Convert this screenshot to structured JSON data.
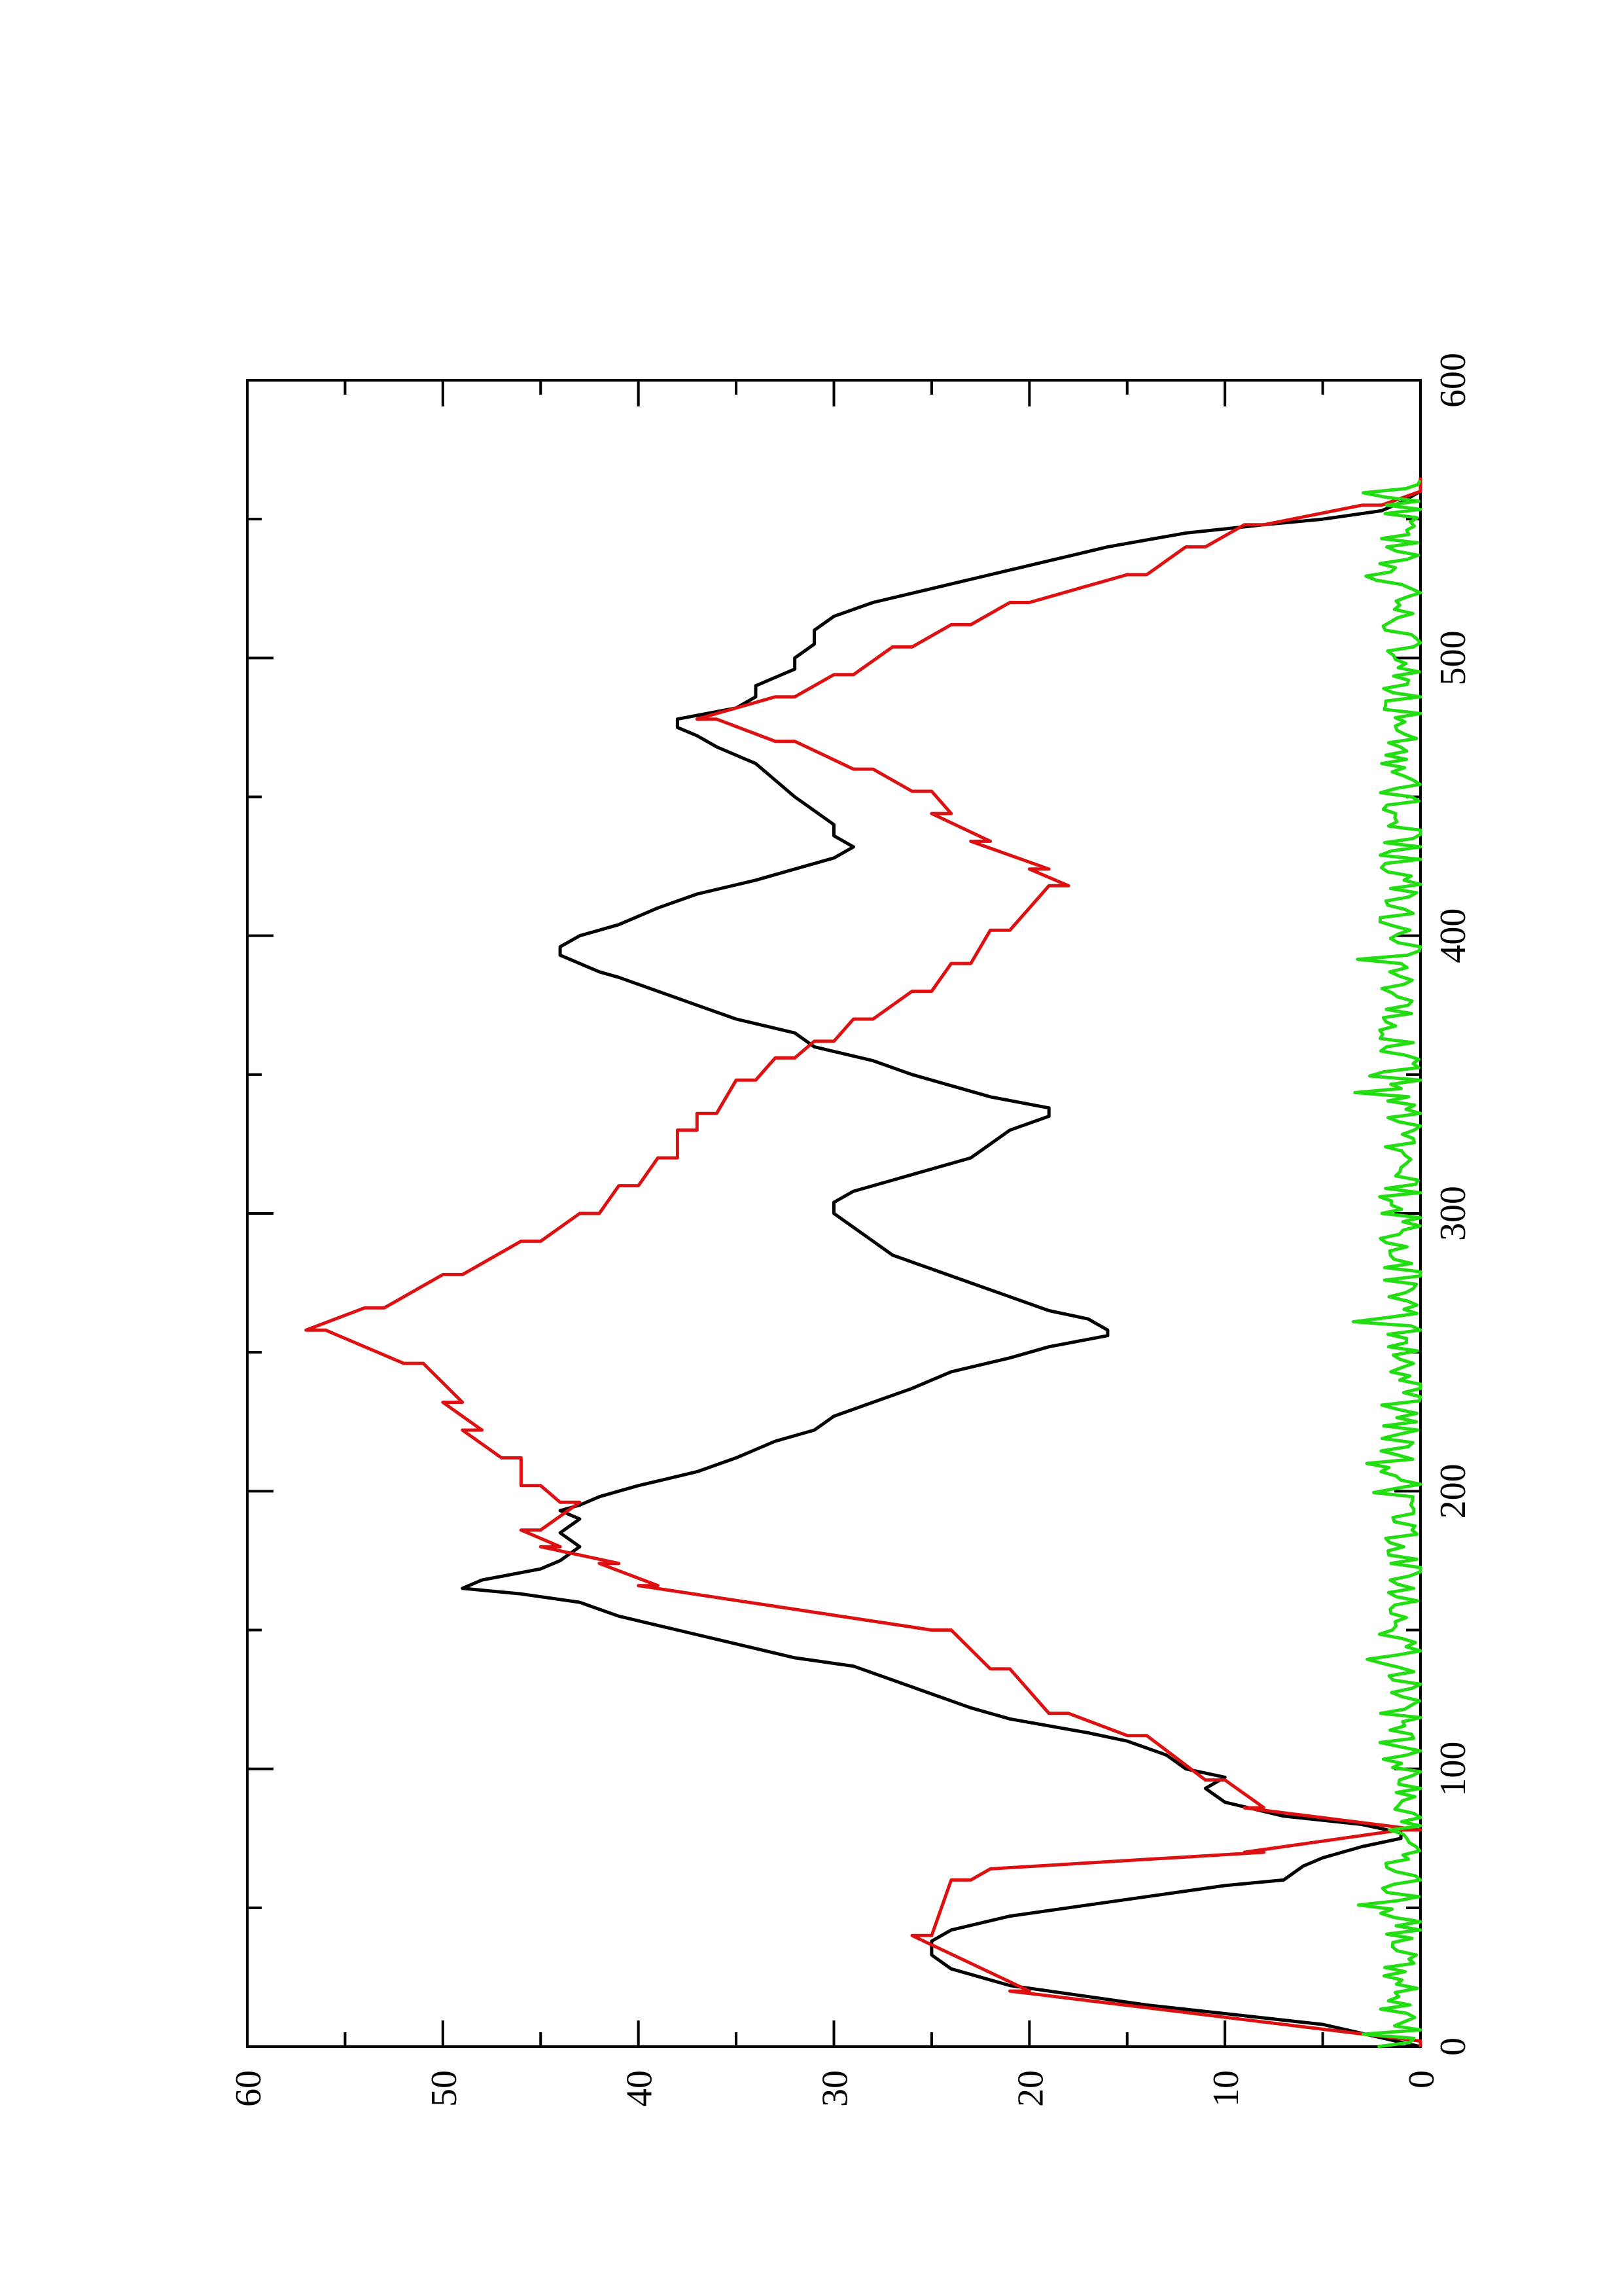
{
  "chart_data": {
    "type": "line",
    "orientation": "rotated-90-ccw",
    "title": "",
    "xlabel": "",
    "ylabel": "",
    "xlim": [
      0,
      600
    ],
    "ylim": [
      0,
      60
    ],
    "x_ticks": [
      0,
      100,
      200,
      300,
      400,
      500,
      600
    ],
    "x_minor_ticks": [
      50,
      150,
      250,
      350,
      450,
      550
    ],
    "y_ticks": [
      0,
      10,
      20,
      30,
      40,
      50,
      60
    ],
    "y_minor_ticks": [
      5,
      15,
      25,
      35,
      45,
      55
    ],
    "grid": false,
    "legend": "none",
    "series": [
      {
        "color": "#000000",
        "step": false,
        "points": [
          [
            0,
            0
          ],
          [
            8,
            5
          ],
          [
            15,
            14
          ],
          [
            22,
            21
          ],
          [
            28,
            24
          ],
          [
            33,
            25
          ],
          [
            38,
            25
          ],
          [
            42,
            24
          ],
          [
            47,
            21
          ],
          [
            52,
            16
          ],
          [
            56,
            12
          ],
          [
            58,
            10
          ],
          [
            60,
            7
          ],
          [
            65,
            6
          ],
          [
            68,
            5
          ],
          [
            72,
            3
          ],
          [
            75,
            1
          ],
          [
            77,
            1
          ],
          [
            80,
            3
          ],
          [
            83,
            7
          ],
          [
            88,
            10
          ],
          [
            93,
            11
          ],
          [
            97,
            10
          ],
          [
            100,
            12
          ],
          [
            105,
            13
          ],
          [
            110,
            15
          ],
          [
            113,
            17
          ],
          [
            118,
            21
          ],
          [
            122,
            23
          ],
          [
            127,
            25
          ],
          [
            132,
            27
          ],
          [
            137,
            29
          ],
          [
            140,
            32
          ],
          [
            145,
            35
          ],
          [
            150,
            38
          ],
          [
            155,
            41
          ],
          [
            160,
            43
          ],
          [
            163,
            46
          ],
          [
            165,
            49
          ],
          [
            168,
            48
          ],
          [
            172,
            45
          ],
          [
            175,
            44
          ],
          [
            180,
            43
          ],
          [
            185,
            44
          ],
          [
            190,
            43
          ],
          [
            193,
            44
          ],
          [
            195,
            43
          ],
          [
            198,
            42
          ],
          [
            202,
            40
          ],
          [
            207,
            37
          ],
          [
            212,
            35
          ],
          [
            218,
            33
          ],
          [
            222,
            31
          ],
          [
            227,
            30
          ],
          [
            232,
            28
          ],
          [
            237,
            26
          ],
          [
            243,
            24
          ],
          [
            248,
            21
          ],
          [
            252,
            19
          ],
          [
            256,
            16
          ],
          [
            258,
            16
          ],
          [
            262,
            17
          ],
          [
            265,
            19
          ],
          [
            270,
            21
          ],
          [
            275,
            23
          ],
          [
            280,
            25
          ],
          [
            285,
            27
          ],
          [
            290,
            28
          ],
          [
            295,
            29
          ],
          [
            300,
            30
          ],
          [
            304,
            30
          ],
          [
            308,
            29
          ],
          [
            312,
            27
          ],
          [
            316,
            25
          ],
          [
            320,
            23
          ],
          [
            325,
            22
          ],
          [
            330,
            21
          ],
          [
            335,
            19
          ],
          [
            338,
            19
          ],
          [
            342,
            22
          ],
          [
            346,
            24
          ],
          [
            350,
            26
          ],
          [
            355,
            28
          ],
          [
            360,
            31
          ],
          [
            365,
            32
          ],
          [
            370,
            35
          ],
          [
            375,
            37
          ],
          [
            380,
            39
          ],
          [
            385,
            41
          ],
          [
            387,
            42
          ],
          [
            390,
            43
          ],
          [
            393,
            44
          ],
          [
            396,
            44
          ],
          [
            400,
            43
          ],
          [
            404,
            41
          ],
          [
            410,
            39
          ],
          [
            415,
            37
          ],
          [
            420,
            34
          ],
          [
            424,
            32
          ],
          [
            428,
            30
          ],
          [
            432,
            29
          ],
          [
            436,
            30
          ],
          [
            440,
            30
          ],
          [
            445,
            31
          ],
          [
            450,
            32
          ],
          [
            456,
            33
          ],
          [
            462,
            34
          ],
          [
            468,
            36
          ],
          [
            472,
            37
          ],
          [
            475,
            38
          ],
          [
            478,
            38
          ],
          [
            482,
            35
          ],
          [
            486,
            34
          ],
          [
            490,
            34
          ],
          [
            493,
            33
          ],
          [
            496,
            32
          ],
          [
            500,
            32
          ],
          [
            505,
            31
          ],
          [
            510,
            31
          ],
          [
            515,
            30
          ],
          [
            520,
            28
          ],
          [
            525,
            25
          ],
          [
            530,
            22
          ],
          [
            535,
            19
          ],
          [
            540,
            16
          ],
          [
            545,
            12
          ],
          [
            548,
            8
          ],
          [
            550,
            5
          ],
          [
            553,
            2
          ],
          [
            556,
            1
          ],
          [
            560,
            0
          ],
          [
            565,
            0
          ]
        ]
      },
      {
        "color": "#dd1111",
        "step": true,
        "points": [
          [
            0,
            0
          ],
          [
            2,
            0
          ],
          [
            20,
            21
          ],
          [
            20,
            20
          ],
          [
            40,
            26
          ],
          [
            40,
            25
          ],
          [
            60,
            24
          ],
          [
            60,
            23
          ],
          [
            64,
            22
          ],
          [
            70,
            8
          ],
          [
            70,
            9
          ],
          [
            78,
            1
          ],
          [
            78,
            0
          ],
          [
            86,
            9
          ],
          [
            86,
            8
          ],
          [
            96,
            10
          ],
          [
            96,
            11
          ],
          [
            112,
            14
          ],
          [
            112,
            15
          ],
          [
            120,
            18
          ],
          [
            120,
            19
          ],
          [
            136,
            21
          ],
          [
            136,
            22
          ],
          [
            150,
            24
          ],
          [
            150,
            25
          ],
          [
            166,
            40
          ],
          [
            166,
            39
          ],
          [
            174,
            42
          ],
          [
            174,
            41
          ],
          [
            180,
            45
          ],
          [
            180,
            44
          ],
          [
            186,
            46
          ],
          [
            186,
            45
          ],
          [
            196,
            43
          ],
          [
            196,
            44
          ],
          [
            202,
            45
          ],
          [
            202,
            46
          ],
          [
            212,
            46
          ],
          [
            212,
            47
          ],
          [
            222,
            49
          ],
          [
            222,
            48
          ],
          [
            232,
            50
          ],
          [
            232,
            49
          ],
          [
            246,
            51
          ],
          [
            246,
            52
          ],
          [
            258,
            56
          ],
          [
            258,
            57
          ],
          [
            266,
            54
          ],
          [
            266,
            53
          ],
          [
            278,
            50
          ],
          [
            278,
            49
          ],
          [
            290,
            46
          ],
          [
            290,
            45
          ],
          [
            300,
            43
          ],
          [
            300,
            42
          ],
          [
            310,
            41
          ],
          [
            310,
            40
          ],
          [
            320,
            39
          ],
          [
            320,
            38
          ],
          [
            330,
            38
          ],
          [
            330,
            37
          ],
          [
            336,
            37
          ],
          [
            336,
            36
          ],
          [
            348,
            35
          ],
          [
            348,
            34
          ],
          [
            356,
            33
          ],
          [
            356,
            32
          ],
          [
            362,
            31
          ],
          [
            362,
            30
          ],
          [
            370,
            29
          ],
          [
            370,
            28
          ],
          [
            380,
            26
          ],
          [
            380,
            25
          ],
          [
            390,
            24
          ],
          [
            390,
            23
          ],
          [
            402,
            22
          ],
          [
            402,
            21
          ],
          [
            418,
            19
          ],
          [
            418,
            18
          ],
          [
            424,
            20
          ],
          [
            424,
            19
          ],
          [
            434,
            23
          ],
          [
            434,
            22
          ],
          [
            444,
            25
          ],
          [
            444,
            24
          ],
          [
            452,
            25
          ],
          [
            452,
            26
          ],
          [
            460,
            28
          ],
          [
            460,
            29
          ],
          [
            470,
            32
          ],
          [
            470,
            33
          ],
          [
            478,
            36
          ],
          [
            478,
            37
          ],
          [
            486,
            33
          ],
          [
            486,
            32
          ],
          [
            494,
            30
          ],
          [
            494,
            29
          ],
          [
            504,
            27
          ],
          [
            504,
            26
          ],
          [
            512,
            24
          ],
          [
            512,
            23
          ],
          [
            520,
            21
          ],
          [
            520,
            20
          ],
          [
            530,
            15
          ],
          [
            530,
            14
          ],
          [
            540,
            12
          ],
          [
            540,
            11
          ],
          [
            548,
            9
          ],
          [
            548,
            8
          ],
          [
            555,
            3
          ],
          [
            555,
            2
          ],
          [
            560,
            0
          ],
          [
            565,
            0
          ]
        ]
      },
      {
        "color": "#22dd11",
        "step": false,
        "noise": true,
        "mean": 0.9,
        "amplitude": 1.2,
        "x_range": [
          0,
          565
        ]
      }
    ]
  }
}
